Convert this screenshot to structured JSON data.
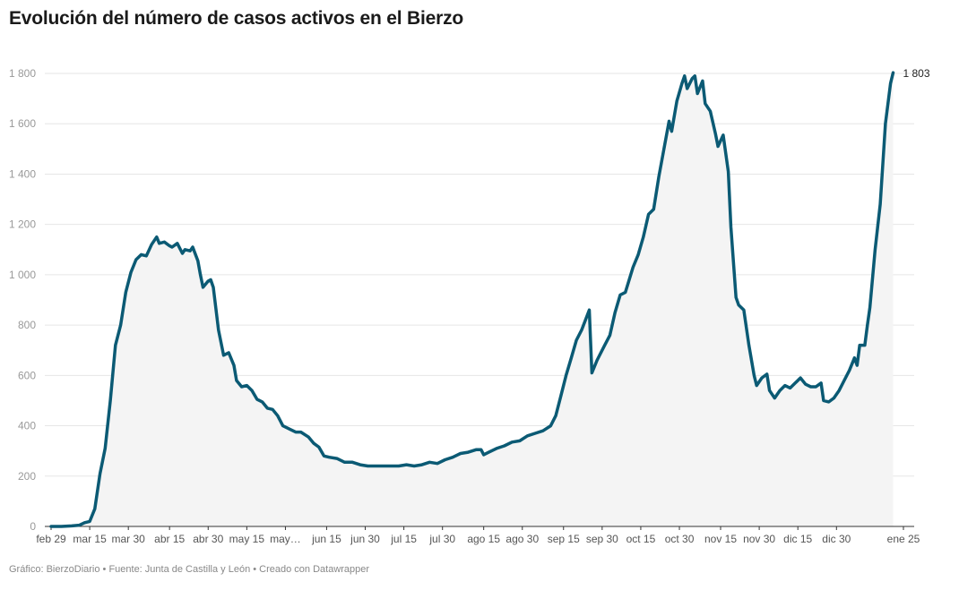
{
  "title": "Evolución del número de casos activos en el Bierzo",
  "footer": "Gráfico: BierzoDiario • Fuente: Junta de Castilla y León • Creado con Datawrapper",
  "colors": {
    "line": "#0b5a74",
    "area": "#f4f4f4",
    "grid": "#e6e6e6",
    "axis": "#333333"
  },
  "chart_data": {
    "type": "area",
    "title": "Evolución del número de casos activos en el Bierzo",
    "xlabel": "",
    "ylabel": "",
    "ylim": [
      0,
      1800
    ],
    "yticks": [
      0,
      200,
      400,
      600,
      800,
      1000,
      1200,
      1400,
      1600,
      1800
    ],
    "ytick_labels": [
      "0",
      "200",
      "400",
      "600",
      "800",
      "1 000",
      "1 200",
      "1 400",
      "1 600",
      "1 800"
    ],
    "x_start": "2020-02-29",
    "x_end": "2021-01-25",
    "xticks": [
      {
        "date": "2020-02-29",
        "label": "feb 29"
      },
      {
        "date": "2020-03-15",
        "label": "mar 15"
      },
      {
        "date": "2020-03-30",
        "label": "mar 30"
      },
      {
        "date": "2020-04-15",
        "label": "abr 15"
      },
      {
        "date": "2020-04-30",
        "label": "abr 30"
      },
      {
        "date": "2020-05-15",
        "label": "may 15"
      },
      {
        "date": "2020-05-30",
        "label": "may…"
      },
      {
        "date": "2020-06-15",
        "label": "jun 15"
      },
      {
        "date": "2020-06-30",
        "label": "jun 30"
      },
      {
        "date": "2020-07-15",
        "label": "jul 15"
      },
      {
        "date": "2020-07-30",
        "label": "jul 30"
      },
      {
        "date": "2020-08-15",
        "label": "ago 15"
      },
      {
        "date": "2020-08-30",
        "label": "ago 30"
      },
      {
        "date": "2020-09-15",
        "label": "sep 15"
      },
      {
        "date": "2020-09-30",
        "label": "sep 30"
      },
      {
        "date": "2020-10-15",
        "label": "oct 15"
      },
      {
        "date": "2020-10-30",
        "label": "oct 30"
      },
      {
        "date": "2020-11-15",
        "label": "nov 15"
      },
      {
        "date": "2020-11-30",
        "label": "nov 30"
      },
      {
        "date": "2020-12-15",
        "label": "dic 15"
      },
      {
        "date": "2020-12-30",
        "label": "dic 30"
      },
      {
        "date": "2021-01-25",
        "label": "ene 25"
      }
    ],
    "grid": true,
    "end_label": "1 803",
    "series": [
      {
        "name": "",
        "points": [
          [
            "2020-02-29",
            0
          ],
          [
            "2020-03-04",
            0
          ],
          [
            "2020-03-08",
            2
          ],
          [
            "2020-03-11",
            5
          ],
          [
            "2020-03-13",
            15
          ],
          [
            "2020-03-15",
            20
          ],
          [
            "2020-03-17",
            70
          ],
          [
            "2020-03-19",
            210
          ],
          [
            "2020-03-21",
            310
          ],
          [
            "2020-03-23",
            500
          ],
          [
            "2020-03-25",
            720
          ],
          [
            "2020-03-27",
            800
          ],
          [
            "2020-03-29",
            930
          ],
          [
            "2020-03-31",
            1010
          ],
          [
            "2020-04-02",
            1060
          ],
          [
            "2020-04-04",
            1080
          ],
          [
            "2020-04-06",
            1075
          ],
          [
            "2020-04-08",
            1120
          ],
          [
            "2020-04-10",
            1150
          ],
          [
            "2020-04-11",
            1125
          ],
          [
            "2020-04-13",
            1130
          ],
          [
            "2020-04-15",
            1115
          ],
          [
            "2020-04-16",
            1110
          ],
          [
            "2020-04-18",
            1125
          ],
          [
            "2020-04-20",
            1085
          ],
          [
            "2020-04-21",
            1100
          ],
          [
            "2020-04-23",
            1095
          ],
          [
            "2020-04-24",
            1110
          ],
          [
            "2020-04-26",
            1055
          ],
          [
            "2020-04-27",
            1000
          ],
          [
            "2020-04-28",
            950
          ],
          [
            "2020-04-30",
            975
          ],
          [
            "2020-05-01",
            980
          ],
          [
            "2020-05-02",
            950
          ],
          [
            "2020-05-04",
            780
          ],
          [
            "2020-05-06",
            680
          ],
          [
            "2020-05-08",
            690
          ],
          [
            "2020-05-10",
            640
          ],
          [
            "2020-05-11",
            580
          ],
          [
            "2020-05-13",
            555
          ],
          [
            "2020-05-15",
            560
          ],
          [
            "2020-05-17",
            540
          ],
          [
            "2020-05-19",
            505
          ],
          [
            "2020-05-21",
            495
          ],
          [
            "2020-05-23",
            470
          ],
          [
            "2020-05-25",
            465
          ],
          [
            "2020-05-27",
            440
          ],
          [
            "2020-05-29",
            400
          ],
          [
            "2020-06-01",
            385
          ],
          [
            "2020-06-03",
            375
          ],
          [
            "2020-06-05",
            375
          ],
          [
            "2020-06-08",
            355
          ],
          [
            "2020-06-10",
            330
          ],
          [
            "2020-06-12",
            315
          ],
          [
            "2020-06-14",
            280
          ],
          [
            "2020-06-16",
            275
          ],
          [
            "2020-06-19",
            270
          ],
          [
            "2020-06-22",
            255
          ],
          [
            "2020-06-25",
            255
          ],
          [
            "2020-06-28",
            245
          ],
          [
            "2020-07-01",
            240
          ],
          [
            "2020-07-04",
            240
          ],
          [
            "2020-07-07",
            240
          ],
          [
            "2020-07-10",
            240
          ],
          [
            "2020-07-13",
            240
          ],
          [
            "2020-07-16",
            245
          ],
          [
            "2020-07-19",
            240
          ],
          [
            "2020-07-22",
            245
          ],
          [
            "2020-07-25",
            255
          ],
          [
            "2020-07-28",
            250
          ],
          [
            "2020-07-31",
            265
          ],
          [
            "2020-08-03",
            275
          ],
          [
            "2020-08-06",
            290
          ],
          [
            "2020-08-09",
            295
          ],
          [
            "2020-08-12",
            305
          ],
          [
            "2020-08-14",
            305
          ],
          [
            "2020-08-15",
            285
          ],
          [
            "2020-08-17",
            295
          ],
          [
            "2020-08-20",
            310
          ],
          [
            "2020-08-23",
            320
          ],
          [
            "2020-08-26",
            335
          ],
          [
            "2020-08-29",
            340
          ],
          [
            "2020-09-01",
            360
          ],
          [
            "2020-09-04",
            370
          ],
          [
            "2020-09-07",
            380
          ],
          [
            "2020-09-10",
            400
          ],
          [
            "2020-09-12",
            440
          ],
          [
            "2020-09-14",
            520
          ],
          [
            "2020-09-16",
            600
          ],
          [
            "2020-09-18",
            670
          ],
          [
            "2020-09-20",
            740
          ],
          [
            "2020-09-22",
            780
          ],
          [
            "2020-09-25",
            860
          ],
          [
            "2020-09-26",
            610
          ],
          [
            "2020-09-28",
            660
          ],
          [
            "2020-10-01",
            720
          ],
          [
            "2020-10-03",
            760
          ],
          [
            "2020-10-05",
            850
          ],
          [
            "2020-10-07",
            920
          ],
          [
            "2020-10-09",
            930
          ],
          [
            "2020-10-12",
            1030
          ],
          [
            "2020-10-14",
            1080
          ],
          [
            "2020-10-16",
            1150
          ],
          [
            "2020-10-18",
            1240
          ],
          [
            "2020-10-20",
            1260
          ],
          [
            "2020-10-22",
            1390
          ],
          [
            "2020-10-24",
            1500
          ],
          [
            "2020-10-26",
            1610
          ],
          [
            "2020-10-27",
            1570
          ],
          [
            "2020-10-29",
            1690
          ],
          [
            "2020-10-31",
            1760
          ],
          [
            "2020-11-01",
            1790
          ],
          [
            "2020-11-02",
            1740
          ],
          [
            "2020-11-04",
            1780
          ],
          [
            "2020-11-05",
            1790
          ],
          [
            "2020-11-06",
            1720
          ],
          [
            "2020-11-08",
            1770
          ],
          [
            "2020-11-09",
            1680
          ],
          [
            "2020-11-11",
            1650
          ],
          [
            "2020-11-13",
            1560
          ],
          [
            "2020-11-14",
            1510
          ],
          [
            "2020-11-16",
            1555
          ],
          [
            "2020-11-18",
            1410
          ],
          [
            "2020-11-19",
            1190
          ],
          [
            "2020-11-21",
            910
          ],
          [
            "2020-11-22",
            880
          ],
          [
            "2020-11-24",
            860
          ],
          [
            "2020-11-26",
            720
          ],
          [
            "2020-11-28",
            600
          ],
          [
            "2020-11-29",
            560
          ],
          [
            "2020-12-01",
            590
          ],
          [
            "2020-12-03",
            605
          ],
          [
            "2020-12-04",
            540
          ],
          [
            "2020-12-06",
            510
          ],
          [
            "2020-12-08",
            540
          ],
          [
            "2020-12-10",
            560
          ],
          [
            "2020-12-12",
            550
          ],
          [
            "2020-12-14",
            570
          ],
          [
            "2020-12-16",
            590
          ],
          [
            "2020-12-18",
            565
          ],
          [
            "2020-12-20",
            555
          ],
          [
            "2020-12-22",
            555
          ],
          [
            "2020-12-24",
            570
          ],
          [
            "2020-12-25",
            500
          ],
          [
            "2020-12-27",
            495
          ],
          [
            "2020-12-29",
            510
          ],
          [
            "2020-12-31",
            540
          ],
          [
            "2021-01-02",
            580
          ],
          [
            "2021-01-04",
            620
          ],
          [
            "2021-01-06",
            670
          ],
          [
            "2021-01-07",
            640
          ],
          [
            "2021-01-08",
            720
          ],
          [
            "2021-01-10",
            720
          ],
          [
            "2021-01-11",
            800
          ],
          [
            "2021-01-12",
            870
          ],
          [
            "2021-01-14",
            1100
          ],
          [
            "2021-01-16",
            1280
          ],
          [
            "2021-01-18",
            1600
          ],
          [
            "2021-01-20",
            1760
          ],
          [
            "2021-01-21",
            1803
          ]
        ]
      }
    ]
  }
}
